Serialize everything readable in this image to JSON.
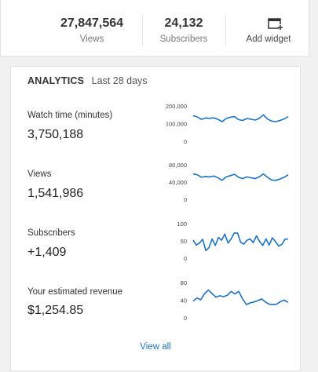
{
  "stats": {
    "views_value": "27,847,564",
    "views_label": "Views",
    "subscribers_value": "24,132",
    "subscribers_label": "Subscribers",
    "add_widget_label": "Add widget",
    "add_widget_icon": "add-widget-icon"
  },
  "analytics": {
    "title": "ANALYTICS",
    "range": "Last 28 days",
    "view_all": "View all",
    "line_color": "#1a73c8"
  },
  "chart_data": [
    {
      "type": "line",
      "title": "Watch time (minutes)",
      "value_label": "3,750,188",
      "ylim": [
        0,
        200000
      ],
      "yticks": [
        "200,000",
        "100,000",
        "0"
      ],
      "values": [
        145000,
        138000,
        124000,
        132000,
        130000,
        133000,
        124000,
        111000,
        129000,
        136000,
        140000,
        122000,
        118000,
        129000,
        125000,
        120000,
        130000,
        150000,
        126000,
        114000,
        111000,
        118000,
        126000,
        140000
      ]
    },
    {
      "type": "line",
      "title": "Views",
      "value_label": "1,541,986",
      "ylim": [
        0,
        80000
      ],
      "yticks": [
        "80,000",
        "40,000",
        "0"
      ],
      "values": [
        59000,
        57000,
        51000,
        53000,
        52000,
        54000,
        50000,
        44000,
        52000,
        55000,
        58000,
        51000,
        48000,
        52000,
        50000,
        48000,
        52000,
        59000,
        51000,
        45000,
        44000,
        47000,
        51000,
        57000
      ]
    },
    {
      "type": "line",
      "title": "Subscribers",
      "value_label": "+1,409",
      "ylim": [
        0,
        100
      ],
      "yticks": [
        "100",
        "50",
        "0"
      ],
      "values": [
        52,
        38,
        44,
        55,
        22,
        31,
        56,
        37,
        60,
        52,
        70,
        44,
        56,
        73,
        73,
        46,
        41,
        52,
        56,
        45,
        65,
        48,
        37,
        56,
        38,
        59,
        48,
        35,
        40,
        55,
        56
      ]
    },
    {
      "type": "line",
      "title": "Your estimated revenue",
      "value_label": "$1,254.85",
      "ylim": [
        0,
        80
      ],
      "yticks": [
        "80",
        "40",
        "0"
      ],
      "values": [
        38,
        45,
        41,
        55,
        63,
        55,
        47,
        50,
        48,
        51,
        60,
        54,
        60,
        43,
        30,
        34,
        36,
        39,
        43,
        36,
        31,
        30,
        31,
        37,
        40,
        35
      ]
    }
  ]
}
